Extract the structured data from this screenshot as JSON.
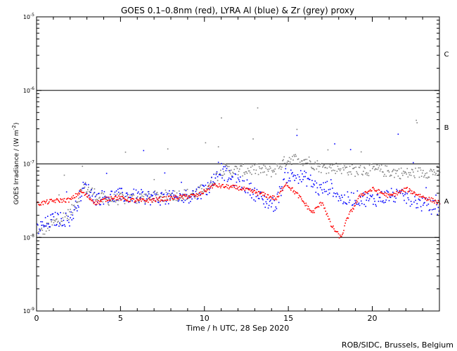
{
  "chart_data": {
    "type": "scatter",
    "title": "GOES 0.1–0.8nm (red), LYRA Al (blue) & Zr (grey) proxy",
    "xlabel": "Time / h UTC, 28 Sep 2020",
    "ylabel": "GOES Irradiance / (W m",
    "ylabel_sup": "-2",
    "ylabel_end": ")",
    "xlim": [
      0,
      24
    ],
    "ylim": [
      1e-09,
      1e-05
    ],
    "yscale": "log",
    "x_ticks": [
      "0",
      "5",
      "10",
      "15",
      "20"
    ],
    "x_tick_values": [
      0,
      5,
      10,
      15,
      20
    ],
    "y_ticks": [
      {
        "value": 1e-05,
        "base": "10",
        "exp": "-5"
      },
      {
        "value": 1e-06,
        "base": "10",
        "exp": "-6"
      },
      {
        "value": 1e-07,
        "base": "10",
        "exp": "-7"
      },
      {
        "value": 1e-08,
        "base": "10",
        "exp": "-8"
      },
      {
        "value": 1e-09,
        "base": "10",
        "exp": "-9"
      }
    ],
    "reference_lines": [
      1e-06,
      1e-07,
      1e-08
    ],
    "flare_classes": [
      {
        "label": "C",
        "value": 3.16e-06
      },
      {
        "label": "B",
        "value": 3.16e-07
      },
      {
        "label": "A",
        "value": 3.16e-08
      }
    ],
    "series": [
      {
        "name": "GOES 0.1-0.8nm",
        "color": "#ff0000",
        "points": [
          [
            0,
            2.9e-08
          ],
          [
            1,
            3.2e-08
          ],
          [
            2,
            3.3e-08
          ],
          [
            2.6,
            4.3e-08
          ],
          [
            3.5,
            3e-08
          ],
          [
            4.5,
            3.6e-08
          ],
          [
            6,
            3.2e-08
          ],
          [
            7,
            3.3e-08
          ],
          [
            8,
            3.5e-08
          ],
          [
            9,
            3.7e-08
          ],
          [
            9.6,
            3.8e-08
          ],
          [
            10.5,
            5.2e-08
          ],
          [
            12,
            4.8e-08
          ],
          [
            13.5,
            3.9e-08
          ],
          [
            14.3,
            3.4e-08
          ],
          [
            14.8,
            5.6e-08
          ],
          [
            15.5,
            3.9e-08
          ],
          [
            16.4,
            2.2e-08
          ],
          [
            17,
            3.1e-08
          ],
          [
            17.5,
            1.5e-08
          ],
          [
            18.1,
            1e-08
          ],
          [
            18.5,
            1.9e-08
          ],
          [
            19.3,
            3.9e-08
          ],
          [
            20,
            4.6e-08
          ],
          [
            21,
            3.7e-08
          ],
          [
            22,
            4.6e-08
          ],
          [
            23,
            3.6e-08
          ],
          [
            24,
            3e-08
          ]
        ]
      },
      {
        "name": "LYRA Al proxy",
        "color": "#0000ff",
        "points": [
          [
            0,
            1.3e-08
          ],
          [
            1,
            1.8e-08
          ],
          [
            2,
            1.8e-08
          ],
          [
            2.8,
            5e-08
          ],
          [
            3.5,
            3.5e-08
          ],
          [
            5,
            3.8e-08
          ],
          [
            7,
            3.5e-08
          ],
          [
            8.5,
            3.5e-08
          ],
          [
            9.5,
            4e-08
          ],
          [
            10.3,
            5e-08
          ],
          [
            10.8,
            9e-08
          ],
          [
            11.5,
            6.5e-08
          ],
          [
            12.5,
            5e-08
          ],
          [
            13.5,
            3.2e-08
          ],
          [
            14.2,
            2.8e-08
          ],
          [
            14.8,
            7e-08
          ],
          [
            15.5,
            7e-08
          ],
          [
            16.2,
            6.2e-08
          ],
          [
            16.8,
            4.5e-08
          ],
          [
            17.5,
            5e-08
          ],
          [
            18.2,
            3.3e-08
          ],
          [
            19,
            3.5e-08
          ],
          [
            20,
            3.3e-08
          ],
          [
            21,
            3.8e-08
          ],
          [
            22,
            3.6e-08
          ],
          [
            23,
            2.8e-08
          ],
          [
            24,
            2.5e-08
          ]
        ]
      },
      {
        "name": "LYRA Zr proxy",
        "color": "#808080",
        "points": [
          [
            0,
            1.1e-08
          ],
          [
            1,
            1.6e-08
          ],
          [
            2,
            2.2e-08
          ],
          [
            2.8,
            5e-08
          ],
          [
            4,
            3.3e-08
          ],
          [
            6,
            3.5e-08
          ],
          [
            8,
            3.8e-08
          ],
          [
            9.5,
            4e-08
          ],
          [
            10.5,
            6e-08
          ],
          [
            11,
            8.5e-08
          ],
          [
            12,
            8.3e-08
          ],
          [
            13,
            8.5e-08
          ],
          [
            14,
            8e-08
          ],
          [
            15,
            1.2e-07
          ],
          [
            16,
            1.15e-07
          ],
          [
            17,
            9e-08
          ],
          [
            18,
            9e-08
          ],
          [
            19,
            8.2e-08
          ],
          [
            20,
            8.5e-08
          ],
          [
            21,
            8e-08
          ],
          [
            22,
            7.5e-08
          ],
          [
            23,
            7.8e-08
          ],
          [
            24,
            8e-08
          ]
        ]
      }
    ],
    "credit": "ROB/SIDC, Brussels, Belgium"
  }
}
